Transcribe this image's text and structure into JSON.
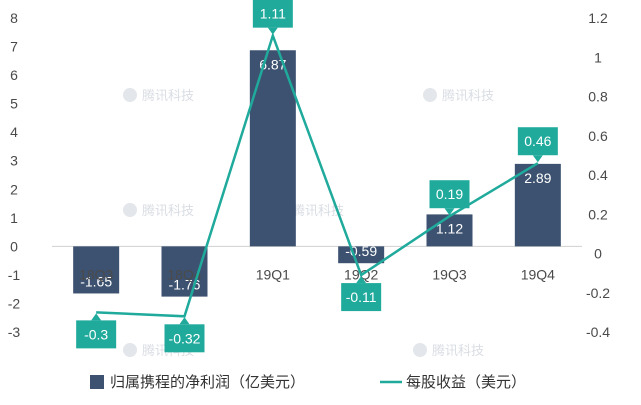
{
  "chart_data": {
    "type": "bar",
    "categories": [
      "18Q3",
      "18Q4",
      "19Q1",
      "19Q2",
      "19Q3",
      "19Q4"
    ],
    "series": [
      {
        "name": "归属携程的净利润（亿美元）",
        "type": "bar",
        "axis": "left",
        "color": "#3d5270",
        "values": [
          -1.65,
          -1.76,
          6.87,
          -0.59,
          1.12,
          2.89
        ],
        "labels": [
          "-1.65",
          "-1.76",
          "6.87",
          "-0.59",
          "1.12",
          "2.89"
        ]
      },
      {
        "name": "每股收益（美元）",
        "type": "line",
        "axis": "right",
        "color": "#1faa9c",
        "values": [
          -0.3,
          -0.32,
          1.11,
          -0.11,
          0.19,
          0.46
        ],
        "labels": [
          "-0.3",
          "-0.32",
          "1.11",
          "-0.11",
          "0.19",
          "0.46"
        ]
      }
    ],
    "y_left": {
      "ylim": [
        -3,
        8
      ],
      "ticks": [
        -3,
        -2,
        -1,
        0,
        1,
        2,
        3,
        4,
        5,
        6,
        7,
        8
      ],
      "tick_labels": [
        "-3",
        "-2",
        "-1",
        "0",
        "1",
        "2",
        "3",
        "4",
        "5",
        "6",
        "7",
        "8"
      ]
    },
    "y_right": {
      "ylim": [
        -0.4,
        1.2
      ],
      "ticks": [
        -0.4,
        -0.2,
        0,
        0.2,
        0.4,
        0.6,
        0.8,
        1.0,
        1.2
      ],
      "tick_labels": [
        "-0.4",
        "-0.2",
        "0",
        "0.2",
        "0.4",
        "0.6",
        "0.8",
        "1",
        "1.2"
      ]
    },
    "legend_position": "bottom",
    "grid": false,
    "watermark": "腾讯科技"
  }
}
